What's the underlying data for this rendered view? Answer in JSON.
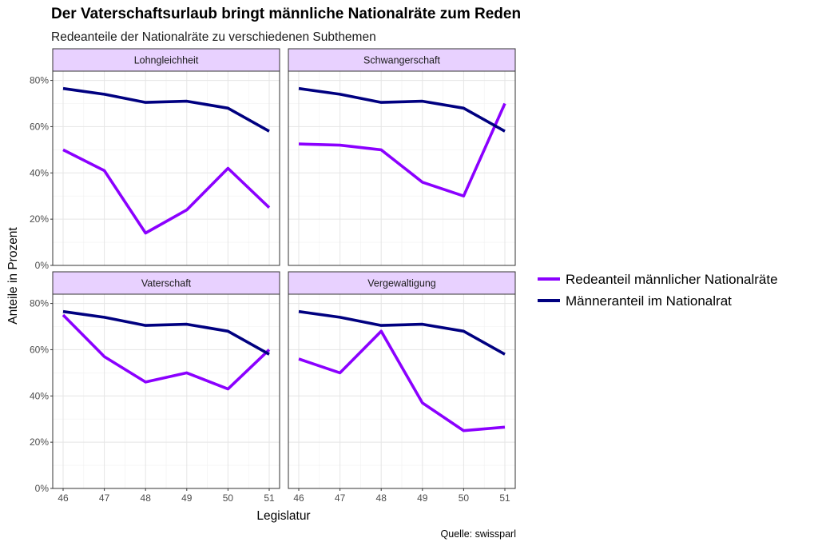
{
  "chart_data": {
    "type": "line",
    "title": "Der Vaterschaftsurlaub bringt männliche Nationalräte zum Reden",
    "subtitle": "Redeanteile der Nationalräte zu verschiedenen Subthemen",
    "xlabel": "Legislatur",
    "ylabel": "Anteile in Prozent",
    "caption": "Quelle: swissparl",
    "x": [
      46,
      47,
      48,
      49,
      50,
      51
    ],
    "x_tick_labels": [
      "46",
      "47",
      "48",
      "49",
      "50",
      "51"
    ],
    "ylim": [
      0,
      0.84
    ],
    "y_ticks": [
      0,
      0.2,
      0.4,
      0.6,
      0.8
    ],
    "y_tick_labels": [
      "0%",
      "20%",
      "40%",
      "60%",
      "80%"
    ],
    "grid": true,
    "legend_position": "right",
    "series_styles": [
      {
        "key": "rede",
        "name": "Redeanteil männlicher Nationalräte",
        "color": "#8b00ff"
      },
      {
        "key": "maenner",
        "name": "Männeranteil im Nationalrat",
        "color": "#000080"
      }
    ],
    "facets": [
      {
        "label": "Lohngleichheit",
        "rede": [
          0.5,
          0.41,
          0.14,
          0.24,
          0.42,
          0.25
        ],
        "maenner": [
          0.765,
          0.74,
          0.705,
          0.71,
          0.68,
          0.58
        ]
      },
      {
        "label": "Schwangerschaft",
        "rede": [
          0.525,
          0.52,
          0.5,
          0.36,
          0.3,
          0.7
        ],
        "maenner": [
          0.765,
          0.74,
          0.705,
          0.71,
          0.68,
          0.58
        ]
      },
      {
        "label": "Vaterschaft",
        "rede": [
          0.75,
          0.57,
          0.46,
          0.5,
          0.43,
          0.6
        ],
        "maenner": [
          0.765,
          0.74,
          0.705,
          0.71,
          0.68,
          0.58
        ]
      },
      {
        "label": "Vergewaltigung",
        "rede": [
          0.56,
          0.5,
          0.68,
          0.37,
          0.25,
          0.265
        ],
        "maenner": [
          0.765,
          0.74,
          0.705,
          0.71,
          0.68,
          0.58
        ]
      }
    ]
  }
}
